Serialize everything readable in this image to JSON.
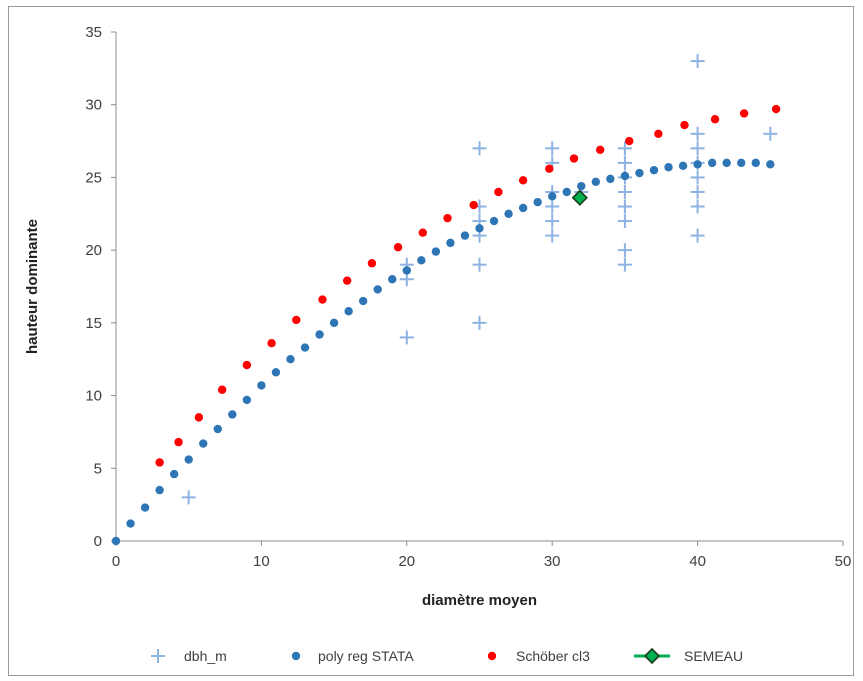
{
  "chart_data": {
    "type": "scatter",
    "xlabel": "diamètre moyen",
    "ylabel": "hauteur dominante",
    "xlim": [
      0,
      50
    ],
    "ylim": [
      0,
      35
    ],
    "xticks": [
      "0",
      "10",
      "20",
      "30",
      "40",
      "50"
    ],
    "yticks": [
      "0",
      "5",
      "10",
      "15",
      "20",
      "25",
      "30",
      "35"
    ],
    "grid": false,
    "legend_position": "bottom",
    "series": [
      {
        "name": "dbh_m",
        "marker": "plus",
        "color": "#8db3e2",
        "points": [
          [
            5,
            3
          ],
          [
            20,
            14
          ],
          [
            20,
            18
          ],
          [
            20,
            19
          ],
          [
            25,
            15
          ],
          [
            25,
            19
          ],
          [
            25,
            21
          ],
          [
            25,
            22
          ],
          [
            25,
            23
          ],
          [
            25,
            27
          ],
          [
            30,
            21
          ],
          [
            30,
            22
          ],
          [
            30,
            23
          ],
          [
            30,
            24
          ],
          [
            30,
            26
          ],
          [
            30,
            27
          ],
          [
            32,
            24
          ],
          [
            35,
            19
          ],
          [
            35,
            20
          ],
          [
            35,
            22
          ],
          [
            35,
            23
          ],
          [
            35,
            24
          ],
          [
            35,
            25
          ],
          [
            35,
            26
          ],
          [
            35,
            27
          ],
          [
            40,
            21
          ],
          [
            40,
            23
          ],
          [
            40,
            24
          ],
          [
            40,
            25
          ],
          [
            40,
            26
          ],
          [
            40,
            27
          ],
          [
            40,
            28
          ],
          [
            40,
            33
          ],
          [
            45,
            28
          ]
        ]
      },
      {
        "name": "poly reg STATA",
        "marker": "dot",
        "color": "#2e75b6",
        "points": [
          [
            0,
            0
          ],
          [
            1,
            1.2
          ],
          [
            2,
            2.3
          ],
          [
            3,
            3.5
          ],
          [
            4,
            4.6
          ],
          [
            5,
            5.6
          ],
          [
            6,
            6.7
          ],
          [
            7,
            7.7
          ],
          [
            8,
            8.7
          ],
          [
            9,
            9.7
          ],
          [
            10,
            10.7
          ],
          [
            11,
            11.6
          ],
          [
            12,
            12.5
          ],
          [
            13,
            13.3
          ],
          [
            14,
            14.2
          ],
          [
            15,
            15.0
          ],
          [
            16,
            15.8
          ],
          [
            17,
            16.5
          ],
          [
            18,
            17.3
          ],
          [
            19,
            18.0
          ],
          [
            20,
            18.6
          ],
          [
            21,
            19.3
          ],
          [
            22,
            19.9
          ],
          [
            23,
            20.5
          ],
          [
            24,
            21.0
          ],
          [
            25,
            21.5
          ],
          [
            26,
            22.0
          ],
          [
            27,
            22.5
          ],
          [
            28,
            22.9
          ],
          [
            29,
            23.3
          ],
          [
            30,
            23.7
          ],
          [
            31,
            24.0
          ],
          [
            32,
            24.4
          ],
          [
            33,
            24.7
          ],
          [
            34,
            24.9
          ],
          [
            35,
            25.1
          ],
          [
            36,
            25.3
          ],
          [
            37,
            25.5
          ],
          [
            38,
            25.7
          ],
          [
            39,
            25.8
          ],
          [
            40,
            25.9
          ],
          [
            41,
            26.0
          ],
          [
            42,
            26.0
          ],
          [
            43,
            26.0
          ],
          [
            44,
            26.0
          ],
          [
            45,
            25.9
          ]
        ]
      },
      {
        "name": "Schöber cl3",
        "marker": "dot",
        "color": "#ff0000",
        "points": [
          [
            3,
            5.4
          ],
          [
            4.3,
            6.8
          ],
          [
            5.7,
            8.5
          ],
          [
            7.3,
            10.4
          ],
          [
            9,
            12.1
          ],
          [
            10.7,
            13.6
          ],
          [
            12.4,
            15.2
          ],
          [
            14.2,
            16.6
          ],
          [
            15.9,
            17.9
          ],
          [
            17.6,
            19.1
          ],
          [
            19.4,
            20.2
          ],
          [
            21.1,
            21.2
          ],
          [
            22.8,
            22.2
          ],
          [
            24.6,
            23.1
          ],
          [
            26.3,
            24.0
          ],
          [
            28,
            24.8
          ],
          [
            29.8,
            25.6
          ],
          [
            31.5,
            26.3
          ],
          [
            33.3,
            26.9
          ],
          [
            35.3,
            27.5
          ],
          [
            37.3,
            28.0
          ],
          [
            39.1,
            28.6
          ],
          [
            41.2,
            29.0
          ],
          [
            43.2,
            29.4
          ],
          [
            45.4,
            29.7
          ]
        ]
      },
      {
        "name": "SEMEAU",
        "marker": "diamond",
        "color": "#00b050",
        "points": [
          [
            31.9,
            23.6
          ]
        ]
      }
    ]
  }
}
